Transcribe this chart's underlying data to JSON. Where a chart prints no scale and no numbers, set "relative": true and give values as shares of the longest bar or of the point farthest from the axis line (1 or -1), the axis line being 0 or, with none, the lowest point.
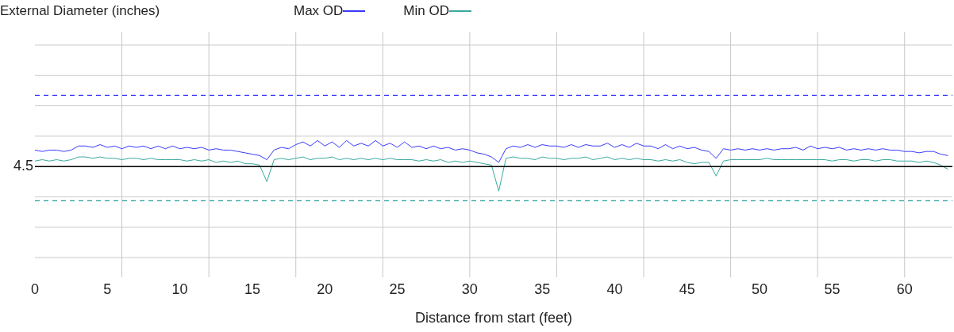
{
  "chart_data": {
    "type": "line",
    "annotations": [
      "4.5"
    ],
    "title": "External Diameter (inches)",
    "xlabel": "Distance from start (feet)",
    "relative": true,
    "grid": true,
    "legend": "top",
    "xlim": [
      0,
      63.3
    ],
    "xticks": [
      0,
      5,
      10,
      15,
      20,
      25,
      30,
      35,
      40,
      45,
      50,
      55,
      60
    ],
    "x": [
      0,
      0.5,
      1,
      1.5,
      2,
      2.5,
      3,
      3.5,
      4,
      4.5,
      5,
      5.5,
      6,
      6.5,
      7,
      7.5,
      8,
      8.5,
      9,
      9.5,
      10,
      10.5,
      11,
      11.5,
      12,
      12.5,
      13,
      13.5,
      14,
      14.5,
      15,
      15.5,
      16,
      16.5,
      17,
      17.5,
      18,
      18.5,
      19,
      19.5,
      20,
      20.5,
      21,
      21.5,
      22,
      22.5,
      23,
      23.5,
      24,
      24.5,
      25,
      25.5,
      26,
      26.5,
      27,
      27.5,
      28,
      28.5,
      29,
      29.5,
      30,
      30.5,
      31,
      31.5,
      32,
      32.5,
      33,
      33.5,
      34,
      34.5,
      35,
      35.5,
      36,
      36.5,
      37,
      37.5,
      38,
      38.5,
      39,
      39.5,
      40,
      40.5,
      41,
      41.5,
      42,
      42.5,
      43,
      43.5,
      44,
      44.5,
      45,
      45.5,
      46,
      46.5,
      47,
      47.5,
      48,
      48.5,
      49,
      49.5,
      50,
      50.5,
      51,
      51.5,
      52,
      52.5,
      53,
      53.5,
      54,
      54.5,
      55,
      55.5,
      56,
      56.5,
      57,
      57.5,
      58,
      58.5,
      59,
      59.5,
      60,
      60.5,
      61,
      61.5,
      62,
      62.5,
      63
    ],
    "series": [
      {
        "name": "Max OD",
        "color": "#3a3aff",
        "values": [
          0.93,
          0.92,
          0.93,
          0.93,
          0.92,
          0.93,
          0.96,
          0.96,
          0.95,
          0.97,
          0.95,
          0.96,
          0.94,
          0.96,
          0.95,
          0.96,
          0.94,
          0.96,
          0.94,
          0.96,
          0.94,
          0.95,
          0.94,
          0.95,
          0.93,
          0.94,
          0.93,
          0.93,
          0.92,
          0.91,
          0.9,
          0.89,
          0.86,
          0.93,
          0.95,
          0.94,
          0.97,
          0.99,
          0.96,
          1.0,
          0.96,
          0.99,
          0.95,
          1.0,
          0.96,
          0.98,
          0.96,
          1.0,
          0.96,
          0.98,
          0.95,
          0.99,
          0.95,
          0.96,
          0.94,
          0.96,
          0.94,
          0.95,
          0.93,
          0.94,
          0.93,
          0.91,
          0.9,
          0.88,
          0.84,
          0.94,
          0.96,
          0.95,
          0.97,
          0.95,
          0.97,
          0.96,
          0.96,
          0.95,
          0.97,
          0.95,
          0.97,
          0.96,
          0.96,
          0.98,
          0.95,
          0.97,
          0.95,
          0.98,
          0.96,
          0.96,
          0.94,
          0.97,
          0.94,
          0.96,
          0.94,
          0.95,
          0.93,
          0.92,
          0.87,
          0.94,
          0.93,
          0.94,
          0.93,
          0.94,
          0.93,
          0.94,
          0.93,
          0.94,
          0.94,
          0.95,
          0.93,
          0.96,
          0.94,
          0.95,
          0.94,
          0.95,
          0.93,
          0.94,
          0.93,
          0.94,
          0.93,
          0.94,
          0.93,
          0.93,
          0.92,
          0.92,
          0.91,
          0.92,
          0.92,
          0.9,
          0.89
        ]
      },
      {
        "name": "Min OD",
        "color": "#3aa99f",
        "values": [
          0.85,
          0.86,
          0.85,
          0.86,
          0.85,
          0.86,
          0.88,
          0.88,
          0.87,
          0.88,
          0.87,
          0.87,
          0.86,
          0.87,
          0.87,
          0.86,
          0.87,
          0.86,
          0.86,
          0.86,
          0.86,
          0.85,
          0.86,
          0.85,
          0.86,
          0.84,
          0.85,
          0.84,
          0.85,
          0.83,
          0.83,
          0.82,
          0.7,
          0.86,
          0.87,
          0.86,
          0.87,
          0.88,
          0.86,
          0.87,
          0.87,
          0.88,
          0.86,
          0.87,
          0.86,
          0.87,
          0.86,
          0.87,
          0.86,
          0.87,
          0.86,
          0.86,
          0.86,
          0.85,
          0.86,
          0.85,
          0.86,
          0.84,
          0.85,
          0.84,
          0.85,
          0.84,
          0.83,
          0.82,
          0.63,
          0.87,
          0.88,
          0.87,
          0.87,
          0.86,
          0.88,
          0.87,
          0.87,
          0.86,
          0.87,
          0.87,
          0.88,
          0.86,
          0.87,
          0.88,
          0.86,
          0.87,
          0.86,
          0.87,
          0.86,
          0.86,
          0.85,
          0.86,
          0.85,
          0.86,
          0.84,
          0.83,
          0.84,
          0.84,
          0.74,
          0.85,
          0.86,
          0.86,
          0.86,
          0.86,
          0.86,
          0.87,
          0.86,
          0.86,
          0.86,
          0.86,
          0.86,
          0.86,
          0.86,
          0.86,
          0.85,
          0.86,
          0.86,
          0.85,
          0.86,
          0.86,
          0.85,
          0.86,
          0.86,
          0.85,
          0.85,
          0.85,
          0.84,
          0.85,
          0.84,
          0.82,
          0.79
        ]
      }
    ],
    "ref_lines": [
      {
        "axis": "y",
        "value": 0.81,
        "color": "#000000",
        "line_style": "solid"
      },
      {
        "axis": "y",
        "value": 1.33,
        "color": "#3a3aff",
        "line_style": "dashed"
      },
      {
        "axis": "y",
        "value": 0.56,
        "color": "#199c9c",
        "line_style": "dashed"
      }
    ]
  }
}
